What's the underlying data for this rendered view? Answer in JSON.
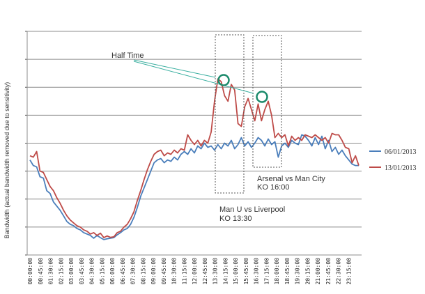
{
  "chart_data": {
    "type": "line",
    "ylabel": "Bandwidth (actual bandwidth removed due to sensitivity)",
    "x_ticks": [
      "00:00:00",
      "00:45:00",
      "01:30:00",
      "02:15:00",
      "03:00:00",
      "03:45:00",
      "04:30:00",
      "05:15:00",
      "06:00:00",
      "06:45:00",
      "07:30:00",
      "08:15:00",
      "09:00:00",
      "09:45:00",
      "10:30:00",
      "11:15:00",
      "12:00:00",
      "12:45:00",
      "13:30:00",
      "14:15:00",
      "15:00:00",
      "15:45:00",
      "16:30:00",
      "17:15:00",
      "18:00:00",
      "18:45:00",
      "19:30:00",
      "20:15:00",
      "21:00:00",
      "21:45:00",
      "22:30:00",
      "23:15:00"
    ],
    "x_step_minutes": 15,
    "y_range": [
      0,
      8
    ],
    "grid": true,
    "legend_position": "right",
    "series": [
      {
        "name": "06/01/2013",
        "color": "#4a7ebb",
        "values": [
          3.4,
          3.2,
          3.15,
          2.8,
          2.75,
          2.3,
          2.2,
          1.9,
          1.75,
          1.6,
          1.4,
          1.2,
          1.1,
          1.05,
          0.95,
          0.9,
          0.8,
          0.75,
          0.7,
          0.6,
          0.7,
          0.62,
          0.55,
          0.58,
          0.6,
          0.62,
          0.72,
          0.8,
          0.9,
          0.95,
          1.1,
          1.35,
          1.7,
          2.1,
          2.4,
          2.7,
          3.0,
          3.3,
          3.4,
          3.45,
          3.3,
          3.4,
          3.35,
          3.5,
          3.4,
          3.6,
          3.7,
          3.6,
          3.8,
          3.65,
          3.9,
          3.8,
          4.0,
          3.85,
          3.9,
          3.75,
          3.95,
          3.8,
          4.0,
          3.9,
          4.1,
          3.8,
          3.95,
          4.2,
          3.9,
          4.05,
          3.85,
          4.0,
          4.2,
          4.1,
          3.9,
          4.15,
          3.95,
          4.05,
          3.5,
          3.9,
          4.0,
          3.85,
          4.1,
          4.0,
          3.95,
          4.3,
          4.25,
          4.1,
          3.9,
          4.2,
          3.95,
          4.25,
          3.8,
          4.1,
          3.7,
          3.85,
          3.6,
          3.75,
          3.55,
          3.4,
          3.25,
          3.2,
          3.2
        ]
      },
      {
        "name": "13/01/2013",
        "color": "#be4b48",
        "values": [
          3.55,
          3.5,
          3.7,
          3.0,
          2.95,
          2.7,
          2.45,
          2.3,
          2.05,
          1.85,
          1.6,
          1.4,
          1.25,
          1.15,
          1.05,
          1.0,
          0.9,
          0.85,
          0.75,
          0.8,
          0.7,
          0.78,
          0.62,
          0.68,
          0.63,
          0.65,
          0.8,
          0.85,
          1.0,
          1.1,
          1.3,
          1.55,
          1.95,
          2.3,
          2.7,
          3.05,
          3.35,
          3.6,
          3.7,
          3.75,
          3.55,
          3.65,
          3.6,
          3.75,
          3.65,
          3.8,
          3.75,
          4.3,
          4.1,
          3.95,
          4.1,
          3.9,
          4.1,
          4.0,
          4.4,
          5.5,
          6.3,
          6.2,
          5.7,
          5.5,
          6.1,
          5.9,
          4.7,
          4.6,
          5.3,
          5.6,
          5.2,
          4.8,
          5.4,
          4.8,
          5.2,
          5.5,
          5.0,
          4.2,
          4.35,
          4.2,
          4.3,
          3.9,
          4.25,
          4.1,
          4.2,
          4.1,
          4.3,
          4.25,
          4.2,
          4.3,
          4.2,
          4.1,
          4.2,
          4.0,
          4.35,
          4.3,
          4.3,
          4.1,
          3.85,
          3.8,
          3.3,
          3.55,
          3.2
        ]
      }
    ],
    "annotations": {
      "half_time": "Half Time",
      "game1_teams": "Man U vs Liverpool",
      "game1_ko": "KO 13:30",
      "game2_teams": "Arsenal vs Man City",
      "game2_ko": "KO  16:00"
    },
    "colors": {
      "grid": "#8c8c8c",
      "arrow": "#3aafa0",
      "marker": "#1b8a6b"
    }
  }
}
